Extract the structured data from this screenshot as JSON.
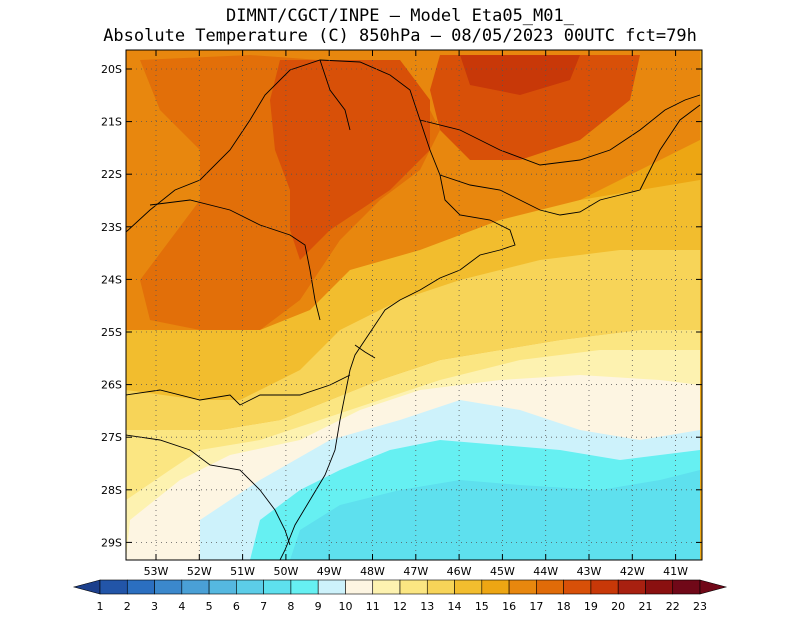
{
  "header": {
    "line1": "DIMNT/CGCT/INPE —  Model Eta05_M01_",
    "line2": "Absolute Temperature (C) 850hPa —  08/05/2023 00UTC fct=79h"
  },
  "axes": {
    "lat_labels": [
      "20S",
      "21S",
      "22S",
      "23S",
      "24S",
      "25S",
      "26S",
      "27S",
      "28S",
      "29S"
    ],
    "lon_labels": [
      "53W",
      "52W",
      "51W",
      "50W",
      "49W",
      "48W",
      "47W",
      "46W",
      "45W",
      "44W",
      "43W",
      "42W",
      "41W"
    ]
  },
  "colorbar": {
    "labels": [
      "1",
      "2",
      "3",
      "4",
      "5",
      "6",
      "7",
      "8",
      "9",
      "10",
      "11",
      "12",
      "13",
      "14",
      "15",
      "16",
      "17",
      "18",
      "19",
      "20",
      "21",
      "22",
      "23"
    ],
    "colors": [
      "#1c3f8c",
      "#2255a8",
      "#2b6fc0",
      "#3b88cc",
      "#4aa0d6",
      "#55b8e0",
      "#5ccde8",
      "#5ee0ee",
      "#66f0f2",
      "#cdf2fb",
      "#fdf5e2",
      "#fdf2b0",
      "#fbe682",
      "#f7d458",
      "#f2bd2e",
      "#eda613",
      "#e8870e",
      "#e06b08",
      "#d85008",
      "#c83808",
      "#a82010",
      "#8a1010",
      "#700818"
    ],
    "lower_extend_color": "#1c3f8c",
    "upper_extend_color": "#700818"
  }
}
